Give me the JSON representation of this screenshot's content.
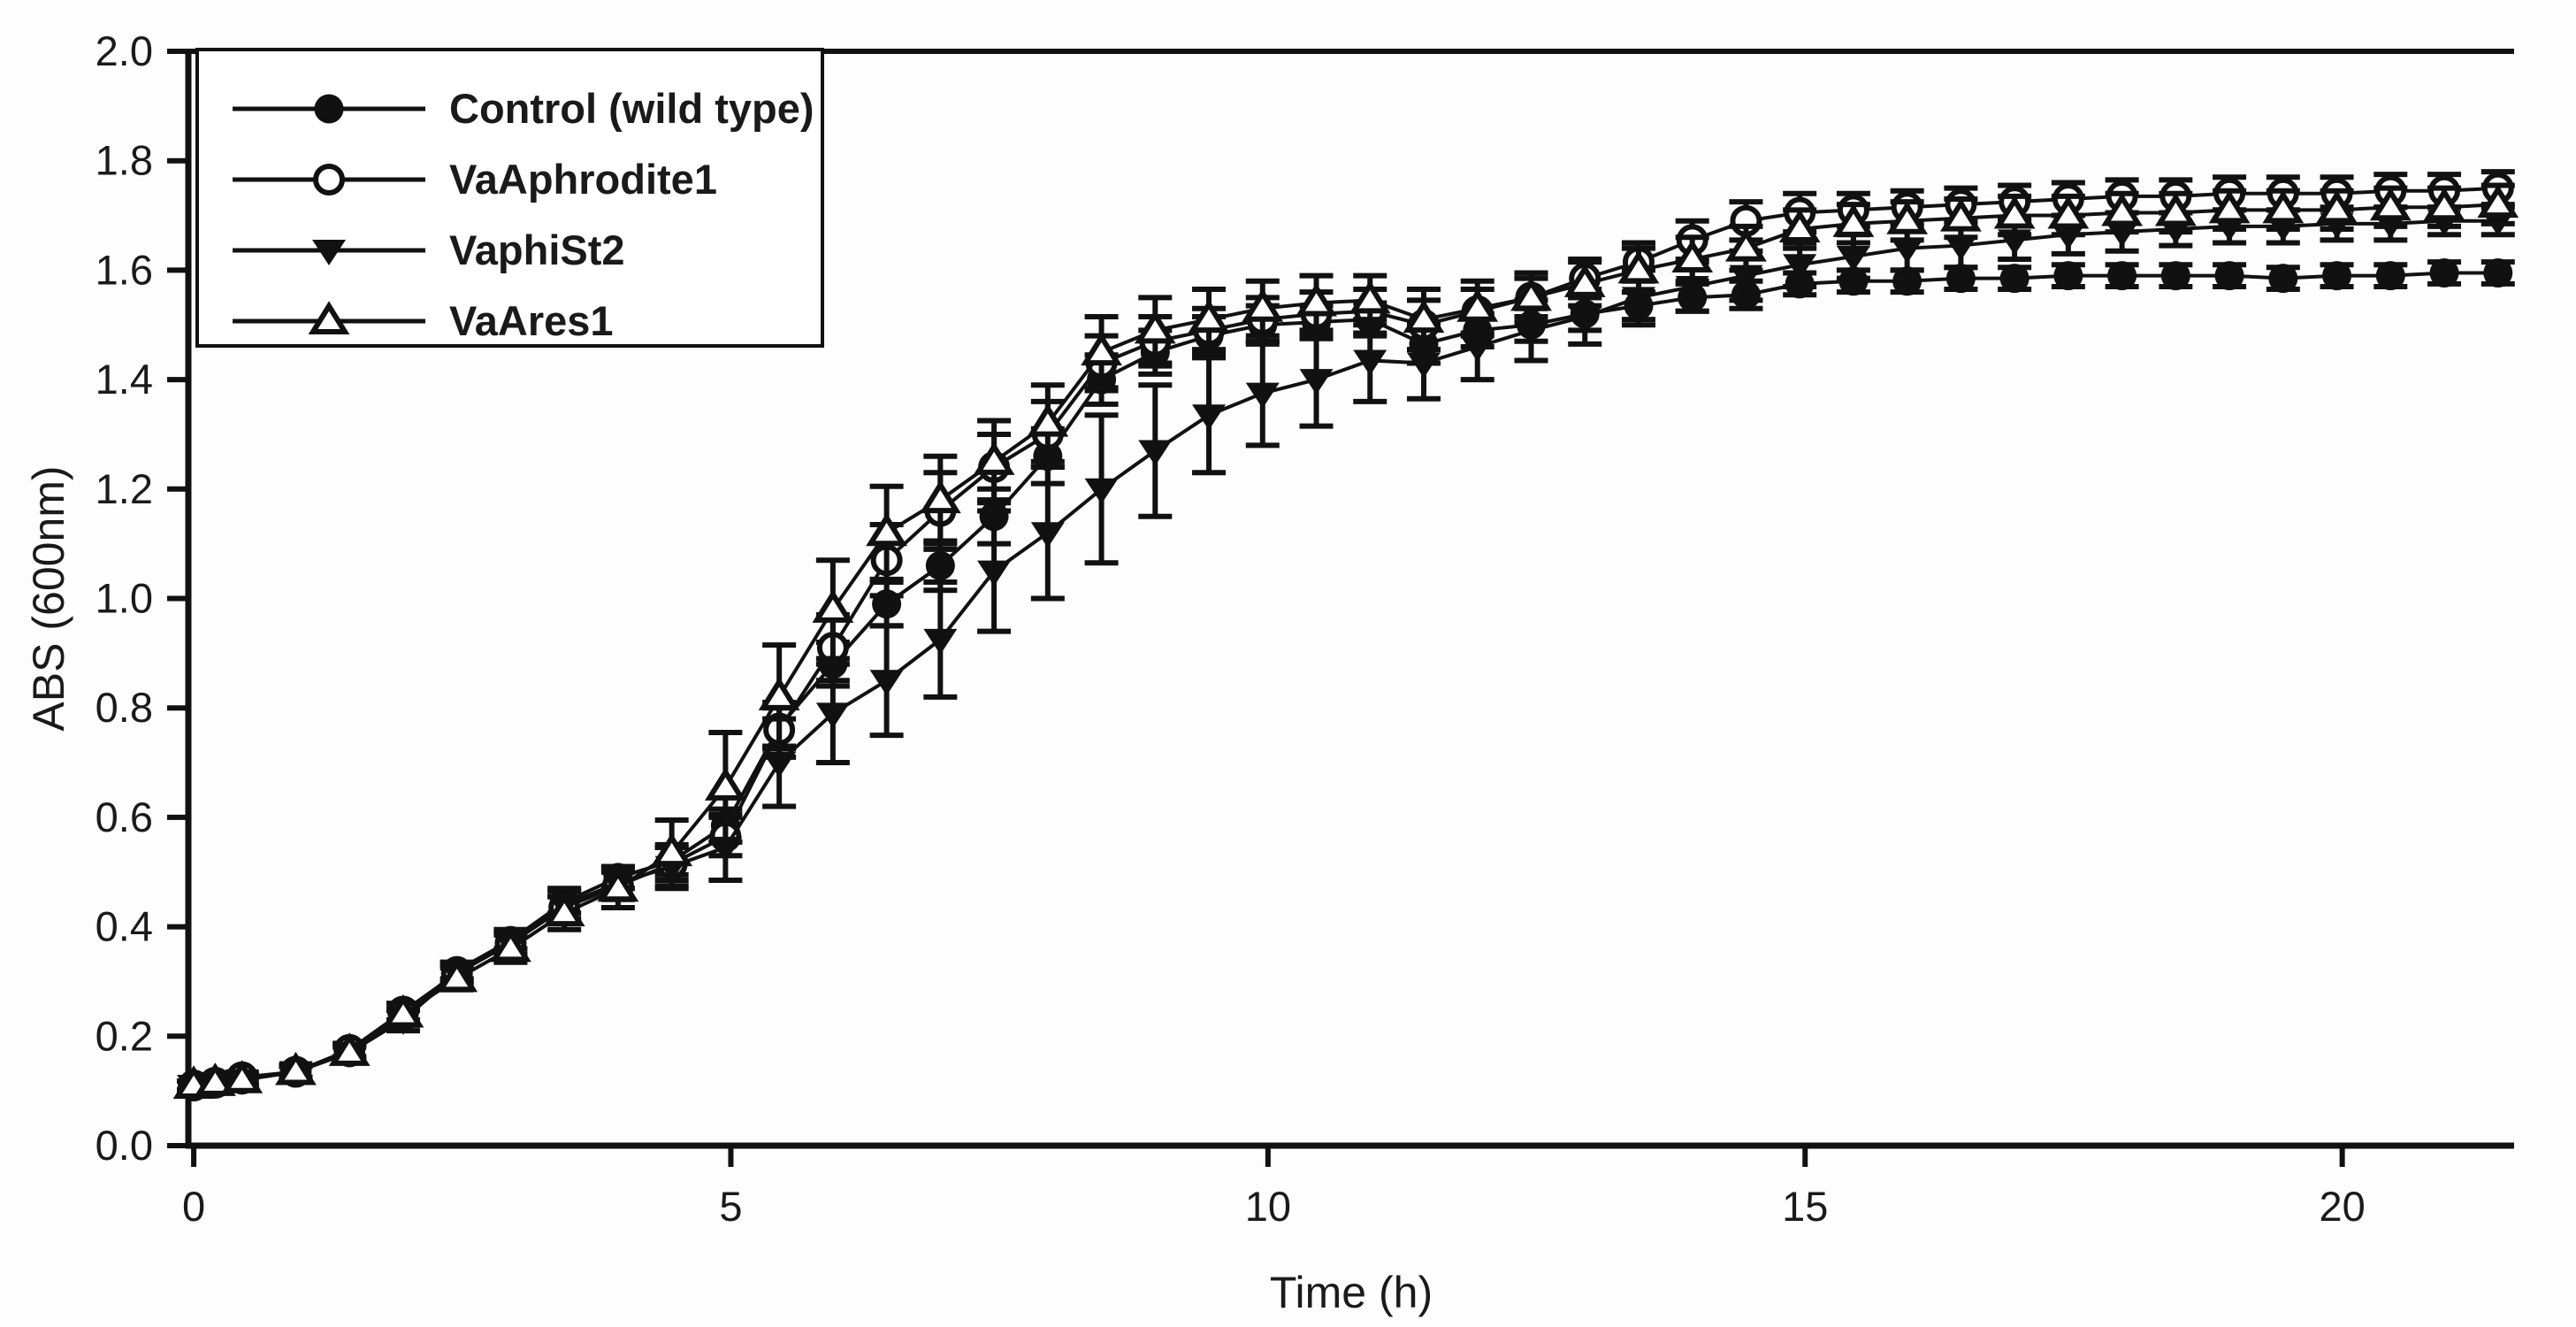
{
  "page": {
    "background": "#ffffff",
    "foreground": "#111111"
  },
  "chart_data": {
    "type": "scatter",
    "title": "",
    "xlabel": "Time (h)",
    "ylabel": "ABS (600nm)",
    "xlim": [
      -0.05,
      21.6
    ],
    "ylim": [
      0.0,
      2.0
    ],
    "grid": false,
    "legend_position": "upper-left",
    "xticks": [
      {
        "v": 0,
        "label": "0"
      },
      {
        "v": 5,
        "label": "5"
      },
      {
        "v": 10,
        "label": "10"
      },
      {
        "v": 15,
        "label": "15"
      },
      {
        "v": 20,
        "label": "20"
      }
    ],
    "yticks": [
      {
        "v": 0.0,
        "label": "0.0"
      },
      {
        "v": 0.2,
        "label": "0.2"
      },
      {
        "v": 0.4,
        "label": "0.4"
      },
      {
        "v": 0.6,
        "label": "0.6"
      },
      {
        "v": 0.8,
        "label": "0.8"
      },
      {
        "v": 1.0,
        "label": "1.0"
      },
      {
        "v": 1.2,
        "label": "1.2"
      },
      {
        "v": 1.4,
        "label": "1.4"
      },
      {
        "v": 1.6,
        "label": "1.6"
      },
      {
        "v": 1.8,
        "label": "1.8"
      },
      {
        "v": 2.0,
        "label": "2.0"
      }
    ],
    "x": [
      0,
      0.2,
      0.45,
      0.95,
      1.45,
      1.95,
      2.45,
      2.95,
      3.45,
      3.95,
      4.45,
      4.95,
      5.45,
      5.95,
      6.45,
      6.95,
      7.45,
      7.95,
      8.45,
      8.95,
      9.45,
      9.95,
      10.45,
      10.95,
      11.45,
      11.95,
      12.45,
      12.95,
      13.45,
      13.95,
      14.45,
      14.95,
      15.45,
      15.95,
      16.45,
      16.95,
      17.45,
      17.95,
      18.45,
      18.95,
      19.45,
      19.95,
      20.45,
      20.95,
      21.45
    ],
    "series": [
      {
        "name": "Control (wild type)",
        "marker": "circle-filled",
        "values": [
          0.11,
          0.115,
          0.12,
          0.135,
          0.17,
          0.235,
          0.32,
          0.375,
          0.445,
          0.49,
          0.52,
          0.585,
          0.765,
          0.88,
          0.99,
          1.06,
          1.15,
          1.26,
          1.4,
          1.45,
          1.48,
          1.5,
          1.505,
          1.51,
          1.465,
          1.49,
          1.5,
          1.52,
          1.535,
          1.55,
          1.555,
          1.575,
          1.58,
          1.58,
          1.585,
          1.585,
          1.59,
          1.59,
          1.59,
          1.59,
          1.585,
          1.59,
          1.59,
          1.595,
          1.595
        ],
        "errors": [
          0.008,
          0.008,
          0.008,
          0.01,
          0.01,
          0.012,
          0.015,
          0.015,
          0.02,
          0.02,
          0.025,
          0.03,
          0.035,
          0.04,
          0.04,
          0.045,
          0.05,
          0.05,
          0.045,
          0.04,
          0.035,
          0.035,
          0.03,
          0.03,
          0.035,
          0.03,
          0.03,
          0.03,
          0.025,
          0.025,
          0.025,
          0.02,
          0.02,
          0.02,
          0.02,
          0.02,
          0.02,
          0.02,
          0.02,
          0.02,
          0.02,
          0.02,
          0.02,
          0.02,
          0.02
        ]
      },
      {
        "name": "VaAphrodite1",
        "marker": "circle-open",
        "values": [
          0.11,
          0.115,
          0.125,
          0.135,
          0.175,
          0.245,
          0.315,
          0.37,
          0.435,
          0.475,
          0.515,
          0.565,
          0.76,
          0.91,
          1.07,
          1.16,
          1.24,
          1.3,
          1.43,
          1.47,
          1.49,
          1.51,
          1.52,
          1.525,
          1.5,
          1.525,
          1.55,
          1.585,
          1.615,
          1.655,
          1.69,
          1.705,
          1.71,
          1.715,
          1.72,
          1.725,
          1.73,
          1.735,
          1.735,
          1.74,
          1.74,
          1.74,
          1.745,
          1.745,
          1.75
        ],
        "errors": [
          0.008,
          0.008,
          0.008,
          0.01,
          0.012,
          0.015,
          0.015,
          0.02,
          0.02,
          0.025,
          0.03,
          0.035,
          0.05,
          0.06,
          0.065,
          0.07,
          0.06,
          0.06,
          0.05,
          0.045,
          0.04,
          0.04,
          0.04,
          0.04,
          0.045,
          0.04,
          0.035,
          0.035,
          0.035,
          0.035,
          0.035,
          0.035,
          0.03,
          0.03,
          0.03,
          0.03,
          0.03,
          0.03,
          0.03,
          0.03,
          0.03,
          0.03,
          0.03,
          0.03,
          0.03
        ]
      },
      {
        "name": "VaphiSt2",
        "marker": "triangle-down-filled",
        "values": [
          0.11,
          0.115,
          0.12,
          0.135,
          0.17,
          0.23,
          0.315,
          0.37,
          0.44,
          0.48,
          0.51,
          0.545,
          0.7,
          0.79,
          0.85,
          0.925,
          1.05,
          1.12,
          1.2,
          1.27,
          1.335,
          1.375,
          1.4,
          1.435,
          1.43,
          1.46,
          1.49,
          1.515,
          1.55,
          1.57,
          1.59,
          1.61,
          1.625,
          1.64,
          1.645,
          1.655,
          1.665,
          1.67,
          1.675,
          1.68,
          1.68,
          1.685,
          1.685,
          1.69,
          1.69
        ],
        "errors": [
          0.008,
          0.008,
          0.01,
          0.012,
          0.015,
          0.02,
          0.02,
          0.025,
          0.03,
          0.03,
          0.04,
          0.06,
          0.08,
          0.09,
          0.1,
          0.105,
          0.11,
          0.12,
          0.135,
          0.12,
          0.105,
          0.095,
          0.085,
          0.075,
          0.065,
          0.06,
          0.055,
          0.05,
          0.05,
          0.045,
          0.045,
          0.04,
          0.04,
          0.04,
          0.04,
          0.035,
          0.035,
          0.035,
          0.03,
          0.03,
          0.03,
          0.03,
          0.03,
          0.025,
          0.025
        ]
      },
      {
        "name": "VaAres1",
        "marker": "triangle-up-open",
        "values": [
          0.11,
          0.115,
          0.12,
          0.135,
          0.17,
          0.24,
          0.305,
          0.36,
          0.425,
          0.47,
          0.535,
          0.655,
          0.82,
          0.98,
          1.12,
          1.18,
          1.25,
          1.32,
          1.45,
          1.49,
          1.51,
          1.53,
          1.54,
          1.545,
          1.51,
          1.53,
          1.55,
          1.575,
          1.6,
          1.62,
          1.64,
          1.675,
          1.685,
          1.69,
          1.695,
          1.7,
          1.7,
          1.705,
          1.705,
          1.71,
          1.71,
          1.71,
          1.715,
          1.715,
          1.72
        ],
        "errors": [
          0.008,
          0.008,
          0.01,
          0.012,
          0.015,
          0.02,
          0.02,
          0.025,
          0.03,
          0.035,
          0.06,
          0.1,
          0.095,
          0.09,
          0.085,
          0.08,
          0.075,
          0.07,
          0.065,
          0.06,
          0.055,
          0.05,
          0.05,
          0.045,
          0.055,
          0.05,
          0.045,
          0.04,
          0.04,
          0.04,
          0.04,
          0.035,
          0.035,
          0.035,
          0.035,
          0.035,
          0.035,
          0.035,
          0.035,
          0.035,
          0.035,
          0.035,
          0.035,
          0.035,
          0.035
        ]
      }
    ],
    "colors": {
      "foreground": "#111111",
      "background": "#ffffff"
    }
  }
}
